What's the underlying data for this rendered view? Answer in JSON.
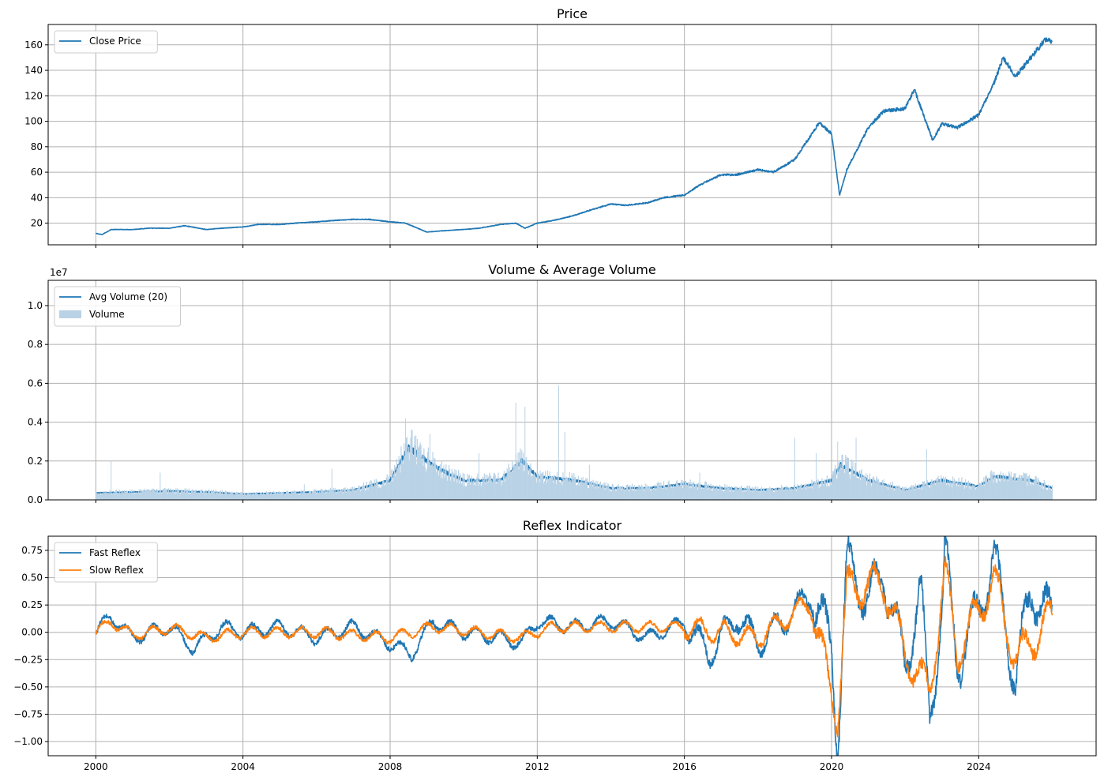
{
  "chart_data": [
    {
      "type": "line",
      "title": "Price",
      "xlim": [
        "1998-09-15",
        "2027-03-10"
      ],
      "ylim": [
        3,
        176
      ],
      "x_ticks": [
        "2000",
        "2004",
        "2008",
        "2012",
        "2016",
        "2020",
        "2024"
      ],
      "y_ticks": [
        20,
        40,
        60,
        80,
        100,
        120,
        140,
        160
      ],
      "y_tick_labels": [
        "20",
        "40",
        "60",
        "80",
        "100",
        "120",
        "140",
        "160"
      ],
      "grid": true,
      "legend": "upper-left",
      "series": [
        {
          "name": "Close Price",
          "color": "#1f77b4",
          "points": [
            [
              "2000-01-01",
              12
            ],
            [
              "2000-03-01",
              11
            ],
            [
              "2000-06-01",
              15
            ],
            [
              "2001-01-01",
              15
            ],
            [
              "2001-06-01",
              16
            ],
            [
              "2002-01-01",
              16
            ],
            [
              "2002-06-01",
              18
            ],
            [
              "2003-01-01",
              15
            ],
            [
              "2003-06-01",
              16
            ],
            [
              "2004-01-01",
              17
            ],
            [
              "2004-06-01",
              19
            ],
            [
              "2005-01-01",
              19
            ],
            [
              "2005-06-01",
              20
            ],
            [
              "2006-01-01",
              21
            ],
            [
              "2006-06-01",
              22
            ],
            [
              "2007-01-01",
              23
            ],
            [
              "2007-06-01",
              23
            ],
            [
              "2008-01-01",
              21
            ],
            [
              "2008-06-01",
              20
            ],
            [
              "2009-01-01",
              13
            ],
            [
              "2009-06-01",
              14
            ],
            [
              "2010-01-01",
              15
            ],
            [
              "2010-06-01",
              16
            ],
            [
              "2011-01-01",
              19
            ],
            [
              "2011-06-01",
              20
            ],
            [
              "2011-09-01",
              16
            ],
            [
              "2012-01-01",
              20
            ],
            [
              "2012-06-01",
              22
            ],
            [
              "2013-01-01",
              26
            ],
            [
              "2013-06-01",
              30
            ],
            [
              "2014-01-01",
              35
            ],
            [
              "2014-06-01",
              34
            ],
            [
              "2015-01-01",
              36
            ],
            [
              "2015-06-01",
              40
            ],
            [
              "2016-01-01",
              42
            ],
            [
              "2016-06-01",
              50
            ],
            [
              "2017-01-01",
              58
            ],
            [
              "2017-06-01",
              58
            ],
            [
              "2018-01-01",
              62
            ],
            [
              "2018-06-01",
              60
            ],
            [
              "2019-01-01",
              70
            ],
            [
              "2019-06-01",
              88
            ],
            [
              "2019-09-01",
              99
            ],
            [
              "2020-01-01",
              90
            ],
            [
              "2020-03-20",
              42
            ],
            [
              "2020-06-01",
              62
            ],
            [
              "2021-01-01",
              95
            ],
            [
              "2021-06-01",
              108
            ],
            [
              "2022-01-01",
              110
            ],
            [
              "2022-04-01",
              125
            ],
            [
              "2022-10-01",
              85
            ],
            [
              "2023-01-01",
              98
            ],
            [
              "2023-06-01",
              95
            ],
            [
              "2024-01-01",
              105
            ],
            [
              "2024-06-01",
              130
            ],
            [
              "2024-09-01",
              150
            ],
            [
              "2025-01-01",
              135
            ],
            [
              "2025-06-01",
              150
            ],
            [
              "2025-11-01",
              165
            ],
            [
              "2026-01-01",
              162
            ]
          ]
        }
      ]
    },
    {
      "type": "bar+line",
      "title": "Volume & Average Volume",
      "offset_text": "1e7",
      "xlim": [
        "1998-09-15",
        "2027-03-10"
      ],
      "ylim": [
        0,
        1.13
      ],
      "y_scale": 10000000,
      "x_ticks": [
        "2000",
        "2004",
        "2008",
        "2012",
        "2016",
        "2020",
        "2024"
      ],
      "y_ticks": [
        0,
        0.2,
        0.4,
        0.6,
        0.8,
        1.0
      ],
      "y_tick_labels": [
        "0.0",
        "0.2",
        "0.4",
        "0.6",
        "0.8",
        "1.0"
      ],
      "grid": true,
      "legend": "upper-left",
      "series": [
        {
          "name": "Avg Volume (20)",
          "type": "line",
          "color": "#1f77b4",
          "points": [
            [
              "2000-01-01",
              0.035
            ],
            [
              "2001-01-01",
              0.04
            ],
            [
              "2002-01-01",
              0.045
            ],
            [
              "2003-01-01",
              0.04
            ],
            [
              "2004-01-01",
              0.03
            ],
            [
              "2005-01-01",
              0.035
            ],
            [
              "2006-01-01",
              0.04
            ],
            [
              "2007-01-01",
              0.05
            ],
            [
              "2008-01-01",
              0.1
            ],
            [
              "2008-07-01",
              0.27
            ],
            [
              "2009-01-01",
              0.2
            ],
            [
              "2009-06-01",
              0.15
            ],
            [
              "2010-01-01",
              0.1
            ],
            [
              "2011-01-01",
              0.1
            ],
            [
              "2011-08-01",
              0.2
            ],
            [
              "2012-01-01",
              0.12
            ],
            [
              "2013-01-01",
              0.1
            ],
            [
              "2014-01-01",
              0.06
            ],
            [
              "2015-01-01",
              0.06
            ],
            [
              "2016-01-01",
              0.08
            ],
            [
              "2017-01-01",
              0.06
            ],
            [
              "2018-01-01",
              0.05
            ],
            [
              "2019-01-01",
              0.06
            ],
            [
              "2020-01-01",
              0.1
            ],
            [
              "2020-04-01",
              0.18
            ],
            [
              "2021-01-01",
              0.1
            ],
            [
              "2022-01-01",
              0.05
            ],
            [
              "2023-01-01",
              0.1
            ],
            [
              "2024-01-01",
              0.07
            ],
            [
              "2024-06-01",
              0.12
            ],
            [
              "2025-06-01",
              0.1
            ],
            [
              "2026-01-01",
              0.06
            ]
          ]
        },
        {
          "name": "Volume",
          "type": "bar",
          "color": "#b9d2e6",
          "spikes": [
            [
              "2000-06-01",
              0.2
            ],
            [
              "2001-10-01",
              0.14
            ],
            [
              "2005-09-01",
              0.08
            ],
            [
              "2006-06-01",
              0.16
            ],
            [
              "2008-06-01",
              0.42
            ],
            [
              "2009-02-01",
              0.34
            ],
            [
              "2010-06-01",
              0.24
            ],
            [
              "2011-06-01",
              0.5
            ],
            [
              "2011-09-01",
              0.48
            ],
            [
              "2012-08-01",
              0.59
            ],
            [
              "2012-10-01",
              0.35
            ],
            [
              "2013-06-01",
              0.18
            ],
            [
              "2016-06-01",
              0.14
            ],
            [
              "2019-01-01",
              0.32
            ],
            [
              "2019-08-01",
              0.24
            ],
            [
              "2020-03-01",
              0.3
            ],
            [
              "2020-09-01",
              0.32
            ],
            [
              "2022-08-01",
              0.26
            ],
            [
              "2024-09-01",
              0.12
            ]
          ]
        }
      ]
    },
    {
      "type": "line",
      "title": "Reflex Indicator",
      "xlim": [
        "1998-09-15",
        "2027-03-10"
      ],
      "ylim": [
        -1.13,
        0.88
      ],
      "x_ticks": [
        "2000",
        "2004",
        "2008",
        "2012",
        "2016",
        "2020",
        "2024"
      ],
      "x_tick_labels": [
        "2000",
        "2004",
        "2008",
        "2012",
        "2016",
        "2020",
        "2024"
      ],
      "y_ticks": [
        -1.0,
        -0.75,
        -0.5,
        -0.25,
        0.0,
        0.25,
        0.5,
        0.75
      ],
      "y_tick_labels": [
        "−1.00",
        "−0.75",
        "−0.50",
        "−0.25",
        "0.00",
        "0.25",
        "0.50",
        "0.75"
      ],
      "grid": true,
      "legend": "upper-left",
      "series": [
        {
          "name": "Fast Reflex",
          "color": "#1f77b4",
          "points": [
            [
              "2000-01-01",
              0
            ],
            [
              "2000-06-01",
              0.15
            ],
            [
              "2001-01-01",
              -0.05
            ],
            [
              "2002-01-01",
              0.05
            ],
            [
              "2002-09-01",
              -0.15
            ],
            [
              "2003-06-01",
              0.05
            ],
            [
              "2004-01-01",
              0
            ],
            [
              "2005-01-01",
              0.05
            ],
            [
              "2006-01-01",
              -0.05
            ],
            [
              "2007-01-01",
              0.05
            ],
            [
              "2008-01-01",
              -0.1
            ],
            [
              "2008-08-01",
              -0.2
            ],
            [
              "2009-03-01",
              0.1
            ],
            [
              "2010-01-01",
              0
            ],
            [
              "2011-01-01",
              -0.05
            ],
            [
              "2011-08-01",
              -0.1
            ],
            [
              "2012-01-01",
              0.1
            ],
            [
              "2013-01-01",
              0.05
            ],
            [
              "2014-01-01",
              0.1
            ],
            [
              "2015-01-01",
              -0.05
            ],
            [
              "2016-01-01",
              0.1
            ],
            [
              "2016-09-01",
              -0.2
            ],
            [
              "2017-06-01",
              0.15
            ],
            [
              "2018-01-01",
              -0.1
            ],
            [
              "2019-01-01",
              0.2
            ],
            [
              "2019-06-01",
              0.35
            ],
            [
              "2020-01-01",
              -0.1
            ],
            [
              "2020-03-01",
              -1.05
            ],
            [
              "2020-06-01",
              0.62
            ],
            [
              "2021-01-01",
              0.3
            ],
            [
              "2021-06-01",
              0.55
            ],
            [
              "2022-01-01",
              -0.3
            ],
            [
              "2022-06-01",
              0.4
            ],
            [
              "2022-09-01",
              -0.8
            ],
            [
              "2023-01-01",
              0.2
            ],
            [
              "2023-02-01",
              0.78
            ],
            [
              "2023-06-01",
              -0.3
            ],
            [
              "2024-01-01",
              0.2
            ],
            [
              "2024-06-01",
              0.7
            ],
            [
              "2025-01-01",
              -0.45
            ],
            [
              "2025-06-01",
              0.4
            ],
            [
              "2026-01-01",
              0.1
            ]
          ]
        },
        {
          "name": "Slow Reflex",
          "color": "#ff7f0e",
          "points": [
            [
              "2000-01-01",
              0
            ],
            [
              "2000-06-01",
              0.1
            ],
            [
              "2001-01-01",
              -0.03
            ],
            [
              "2002-01-01",
              0.04
            ],
            [
              "2003-01-01",
              -0.05
            ],
            [
              "2004-01-01",
              0
            ],
            [
              "2006-01-01",
              0
            ],
            [
              "2008-01-01",
              -0.05
            ],
            [
              "2009-03-01",
              0.05
            ],
            [
              "2011-08-01",
              -0.05
            ],
            [
              "2012-06-01",
              0.05
            ],
            [
              "2016-01-01",
              0.05
            ],
            [
              "2018-01-01",
              -0.05
            ],
            [
              "2019-06-01",
              0.28
            ],
            [
              "2020-03-01",
              -0.8
            ],
            [
              "2020-06-01",
              0.4
            ],
            [
              "2021-06-01",
              0.45
            ],
            [
              "2022-01-01",
              -0.2
            ],
            [
              "2022-09-01",
              -0.55
            ],
            [
              "2023-02-01",
              0.55
            ],
            [
              "2023-06-01",
              -0.2
            ],
            [
              "2024-06-01",
              0.5
            ],
            [
              "2025-01-01",
              -0.25
            ],
            [
              "2026-01-01",
              0.15
            ]
          ]
        }
      ]
    }
  ]
}
